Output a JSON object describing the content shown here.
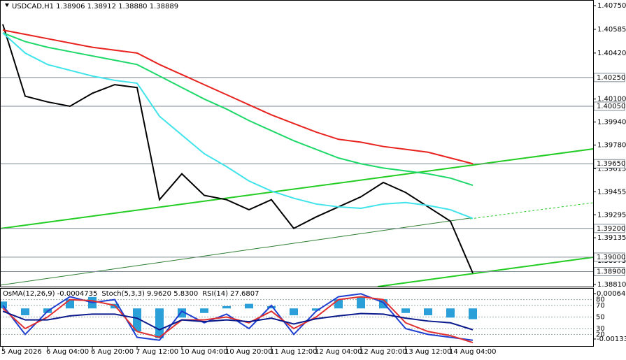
{
  "chart_data": [
    {
      "type": "line",
      "title": "USDCAD,H1  1.38906 1.38912 1.38880 1.38889",
      "categories": [
        "5 Aug 2026",
        null,
        "6 Aug 04:00",
        null,
        "6 Aug 20:00",
        null,
        "7 Aug 12:00",
        null,
        "10 Aug 04:00",
        null,
        "10 Aug 20:00",
        null,
        "11 Aug 12:00",
        null,
        "12 Aug 04:00",
        null,
        "12 Aug 20:00",
        null,
        "13 Aug 12:00",
        null,
        "14 Aug 04:00",
        null
      ],
      "series": [
        {
          "color": "#000000",
          "values": [
            1.4062,
            1.4012,
            1.4008,
            1.4005,
            1.4014,
            1.402,
            1.4018,
            1.394,
            1.3958,
            1.3943,
            1.394,
            1.3933,
            1.394,
            1.392,
            1.3928,
            1.3935,
            1.3942,
            1.3952,
            1.3945,
            1.3935,
            1.3925,
            1.38889
          ]
        },
        {
          "color": "#e8231f",
          "values": [
            1.4058,
            1.4055,
            1.4052,
            1.4049,
            1.4046,
            1.4044,
            1.4042,
            1.4034,
            1.4027,
            1.402,
            1.4013,
            1.4006,
            1.3999,
            1.3993,
            1.3987,
            1.3982,
            1.398,
            1.3977,
            1.3975,
            1.3973,
            1.3969,
            1.3965
          ]
        },
        {
          "color": "#1fd86a",
          "values": [
            1.4056,
            1.405,
            1.4046,
            1.4043,
            1.404,
            1.4037,
            1.4034,
            1.4026,
            1.4018,
            1.401,
            1.4003,
            1.3995,
            1.3988,
            1.3981,
            1.3975,
            1.3969,
            1.3965,
            1.3962,
            1.396,
            1.3958,
            1.3955,
            1.395
          ]
        },
        {
          "color": "#3fe3ea",
          "values": [
            1.4056,
            1.4042,
            1.4034,
            1.403,
            1.4026,
            1.4023,
            1.4021,
            1.3998,
            1.3985,
            1.3972,
            1.3963,
            1.3953,
            1.3946,
            1.3941,
            1.3937,
            1.3935,
            1.3934,
            1.3937,
            1.3938,
            1.3936,
            1.3933,
            1.3927
          ]
        }
      ],
      "ylim": [
        1.3881,
        1.4075
      ],
      "yticks": [
        {
          "value": 1.4075,
          "label": "1.40750"
        },
        {
          "value": 1.40585,
          "label": "1.40585"
        },
        {
          "value": 1.4042,
          "label": "1.40420"
        },
        {
          "value": 1.401,
          "label": "1.40100"
        },
        {
          "value": 1.3994,
          "label": "1.39940"
        },
        {
          "value": 1.3978,
          "label": "1.39780"
        },
        {
          "value": 1.39615,
          "label": "1.39615"
        },
        {
          "value": 1.39455,
          "label": "1.39455"
        },
        {
          "value": 1.39295,
          "label": "1.39295"
        },
        {
          "value": 1.39135,
          "label": "1.39135"
        },
        {
          "value": 1.38975,
          "label": "1.38975"
        },
        {
          "value": 1.3881,
          "label": "1.38810"
        }
      ],
      "levels": [
        {
          "value": 1.4025,
          "label": "1.40250"
        },
        {
          "value": 1.4005,
          "label": "1.40050"
        },
        {
          "value": 1.3965,
          "label": "1.39650"
        },
        {
          "value": 1.392,
          "label": "1.39200"
        },
        {
          "value": 1.39,
          "label": "1.39000"
        },
        {
          "value": 1.389,
          "label": "1.38900"
        }
      ]
    },
    {
      "type": "line",
      "series": [
        {
          "name": "OsMA(12,26,9) -0.0004735",
          "type": "bar",
          "axis": "y2",
          "color": "#2a9fd8",
          "values": [
            0.0003,
            -0.0003,
            -0.0002,
            0.0004,
            0.0005,
            0.0002,
            -0.001,
            -0.0013,
            -0.0004,
            -0.0002,
            0.0001,
            0.0002,
            0.0001,
            -0.0003,
            -0.0001,
            0.0004,
            0.0005,
            0.0004,
            -0.0002,
            -0.0003,
            -0.0004,
            -0.00047
          ]
        },
        {
          "name": "Stoch(5,3,3) 9.9620 5.8300",
          "color": "#1f3fd0",
          "values": [
            70,
            20,
            60,
            85,
            75,
            80,
            15,
            10,
            60,
            40,
            55,
            30,
            70,
            20,
            60,
            85,
            90,
            75,
            30,
            20,
            15,
            10
          ]
        },
        {
          "color": "#e03030",
          "values": [
            65,
            30,
            50,
            80,
            78,
            70,
            25,
            15,
            45,
            45,
            50,
            40,
            60,
            30,
            50,
            80,
            85,
            80,
            40,
            25,
            18,
            6
          ]
        },
        {
          "name": "RSI(14) 27.6807",
          "color": "#0b1a8c",
          "values": [
            60,
            45,
            45,
            52,
            55,
            55,
            48,
            28,
            45,
            42,
            45,
            42,
            48,
            38,
            47,
            52,
            56,
            55,
            48,
            43,
            40,
            28
          ]
        }
      ],
      "ylim": [
        0,
        100
      ],
      "yticks": [
        20,
        30,
        50,
        70,
        80
      ],
      "y2lim": [
        -0.00164,
        0.00089
      ],
      "y2ticks": [
        0.0006434,
        -0.001334
      ]
    }
  ]
}
